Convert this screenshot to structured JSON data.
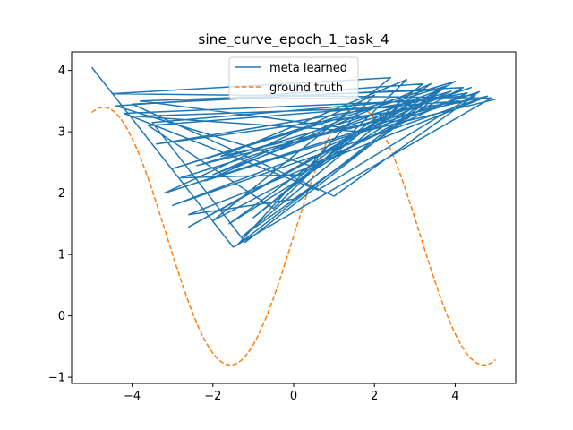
{
  "chart_data": {
    "type": "line",
    "title": "sine_curve_epoch_1_task_4",
    "xlabel": "",
    "ylabel": "",
    "xlim": [
      -5.5,
      5.5
    ],
    "ylim": [
      -1.1,
      4.3
    ],
    "x_ticks": [
      -4,
      -2,
      0,
      2,
      4
    ],
    "y_ticks": [
      -1,
      0,
      1,
      2,
      3,
      4
    ],
    "x_tick_labels": [
      "−4",
      "−2",
      "0",
      "2",
      "4"
    ],
    "y_tick_labels": [
      "−1",
      "0",
      "1",
      "2",
      "3",
      "4"
    ],
    "grid": false,
    "legend_placement": "upper center",
    "series": [
      {
        "name": "meta learned",
        "color": "#1f77b4",
        "style": "solid",
        "x": [
          -5.0,
          -1.5,
          4.9,
          -4.5,
          2.4,
          -2.0,
          4.2,
          -4.0,
          1.0,
          4.5,
          -3.5,
          -1.2,
          3.8,
          -3.0,
          1.6,
          4.0,
          -2.6,
          3.0,
          -4.2,
          0.6,
          4.6,
          -3.2,
          2.0,
          -1.4,
          3.6,
          -3.8,
          1.4,
          4.4,
          -2.8,
          0.2,
          3.4,
          -2.2,
          4.1,
          -3.6,
          -0.5,
          2.8,
          -1.8,
          4.8,
          -3.0,
          0.8,
          3.9,
          -2.4,
          1.8,
          -1.0,
          3.2,
          -4.4,
          0.4,
          4.3,
          -3.4,
          2.2,
          -1.6,
          3.7,
          -2.0,
          1.2,
          4.7,
          -2.6,
          0.0,
          3.3,
          -1.3,
          2.6,
          -3.9,
          1.7,
          5.0
        ],
        "y": [
          4.05,
          1.12,
          3.55,
          3.62,
          3.88,
          1.55,
          3.72,
          3.45,
          1.95,
          3.6,
          3.15,
          1.2,
          3.75,
          2.4,
          3.35,
          3.82,
          1.45,
          3.5,
          3.3,
          2.05,
          3.65,
          2.0,
          3.6,
          1.15,
          3.68,
          3.5,
          3.05,
          3.72,
          2.25,
          2.3,
          3.78,
          2.2,
          3.5,
          3.1,
          1.75,
          3.85,
          2.6,
          3.58,
          1.8,
          2.75,
          3.66,
          2.45,
          3.12,
          1.6,
          3.78,
          3.42,
          2.45,
          3.63,
          2.8,
          3.3,
          1.5,
          3.7,
          2.3,
          3.2,
          3.55,
          1.65,
          1.9,
          3.44,
          1.28,
          3.4,
          3.25,
          3.0,
          3.53
        ]
      },
      {
        "name": "ground truth",
        "color": "#ff7f0e",
        "style": "dashed",
        "function": "1.3 + 2.1*sin(x)",
        "x_range": [
          -5.0,
          5.0
        ]
      }
    ]
  }
}
